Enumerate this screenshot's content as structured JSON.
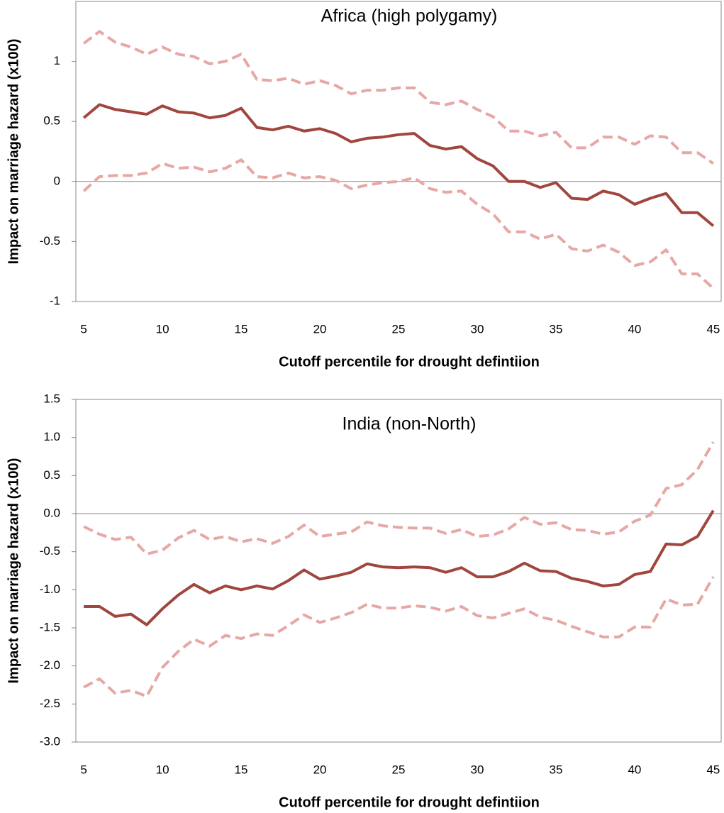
{
  "chart_data": [
    {
      "type": "line",
      "title": "Africa (high polygamy)",
      "x_label": "Cutoff percentile for drought defintiion",
      "y_label": "Impact on marriage hazard (x100)",
      "x": [
        5,
        6,
        7,
        8,
        9,
        10,
        11,
        12,
        13,
        14,
        15,
        16,
        17,
        18,
        19,
        20,
        21,
        22,
        23,
        24,
        25,
        26,
        27,
        28,
        29,
        30,
        31,
        32,
        33,
        34,
        35,
        36,
        37,
        38,
        39,
        40,
        41,
        42,
        43,
        44,
        45
      ],
      "xlim": [
        4.5,
        45.5
      ],
      "xticks": [
        5,
        10,
        15,
        20,
        25,
        30,
        35,
        40,
        45
      ],
      "ylim": [
        -1,
        1.5
      ],
      "yticks": [
        -1,
        -0.5,
        0,
        0.5,
        1
      ],
      "series": [
        {
          "color": "#e6a8a4",
          "dashed": true,
          "values": [
            1.15,
            1.25,
            1.16,
            1.12,
            1.06,
            1.12,
            1.06,
            1.04,
            0.98,
            1.0,
            1.06,
            0.85,
            0.84,
            0.86,
            0.81,
            0.84,
            0.8,
            0.73,
            0.76,
            0.76,
            0.78,
            0.78,
            0.66,
            0.64,
            0.67,
            0.6,
            0.54,
            0.42,
            0.42,
            0.38,
            0.41,
            0.28,
            0.28,
            0.37,
            0.37,
            0.31,
            0.38,
            0.37,
            0.24,
            0.24,
            0.15
          ]
        },
        {
          "color": "#e6a8a4",
          "dashed": true,
          "values": [
            -0.08,
            0.04,
            0.05,
            0.05,
            0.07,
            0.15,
            0.11,
            0.12,
            0.08,
            0.11,
            0.18,
            0.04,
            0.03,
            0.07,
            0.03,
            0.04,
            0.01,
            -0.06,
            -0.03,
            -0.01,
            0.0,
            0.03,
            -0.06,
            -0.09,
            -0.08,
            -0.19,
            -0.27,
            -0.42,
            -0.42,
            -0.48,
            -0.44,
            -0.56,
            -0.58,
            -0.53,
            -0.59,
            -0.7,
            -0.67,
            -0.57,
            -0.77,
            -0.77,
            -0.89
          ]
        },
        {
          "color": "#a0463f",
          "dashed": false,
          "values": [
            0.53,
            0.64,
            0.6,
            0.58,
            0.56,
            0.63,
            0.58,
            0.57,
            0.53,
            0.55,
            0.61,
            0.45,
            0.43,
            0.46,
            0.42,
            0.44,
            0.4,
            0.33,
            0.36,
            0.37,
            0.39,
            0.4,
            0.3,
            0.27,
            0.29,
            0.19,
            0.13,
            0.0,
            0.0,
            -0.05,
            -0.01,
            -0.14,
            -0.15,
            -0.08,
            -0.11,
            -0.19,
            -0.14,
            -0.1,
            -0.26,
            -0.26,
            -0.37
          ]
        }
      ]
    },
    {
      "type": "line",
      "title": "India (non-North)",
      "x_label": "Cutoff percentile for drought defintiion",
      "y_label": "Impact on marriage hazard (x100)",
      "x": [
        5,
        6,
        7,
        8,
        9,
        10,
        11,
        12,
        13,
        14,
        15,
        16,
        17,
        18,
        19,
        20,
        21,
        22,
        23,
        24,
        25,
        26,
        27,
        28,
        29,
        30,
        31,
        32,
        33,
        34,
        35,
        36,
        37,
        38,
        39,
        40,
        41,
        42,
        43,
        44,
        45
      ],
      "xlim": [
        4.5,
        45.5
      ],
      "xticks": [
        5,
        10,
        15,
        20,
        25,
        30,
        35,
        40,
        45
      ],
      "ylim": [
        -3,
        1.5
      ],
      "yticks": [
        {
          "value": -3,
          "label": "-3.0"
        },
        -2.5,
        {
          "value": -2,
          "label": "-2.0"
        },
        -1.5,
        {
          "value": -1,
          "label": "-1.0"
        },
        -0.5,
        {
          "value": 0,
          "label": "0.0"
        },
        0.5,
        {
          "value": 1,
          "label": "1.0"
        },
        1.5
      ],
      "series": [
        {
          "color": "#e6a8a4",
          "dashed": true,
          "values": [
            -0.17,
            -0.27,
            -0.34,
            -0.31,
            -0.53,
            -0.48,
            -0.32,
            -0.22,
            -0.34,
            -0.3,
            -0.37,
            -0.33,
            -0.39,
            -0.3,
            -0.15,
            -0.3,
            -0.27,
            -0.24,
            -0.11,
            -0.16,
            -0.18,
            -0.19,
            -0.19,
            -0.26,
            -0.21,
            -0.3,
            -0.28,
            -0.2,
            -0.05,
            -0.14,
            -0.12,
            -0.21,
            -0.22,
            -0.27,
            -0.24,
            -0.1,
            -0.02,
            0.33,
            0.38,
            0.58,
            0.94
          ]
        },
        {
          "color": "#e6a8a4",
          "dashed": true,
          "values": [
            -2.28,
            -2.17,
            -2.36,
            -2.32,
            -2.4,
            -2.02,
            -1.81,
            -1.65,
            -1.74,
            -1.6,
            -1.64,
            -1.58,
            -1.6,
            -1.47,
            -1.33,
            -1.43,
            -1.37,
            -1.3,
            -1.19,
            -1.24,
            -1.24,
            -1.21,
            -1.23,
            -1.28,
            -1.22,
            -1.34,
            -1.37,
            -1.31,
            -1.25,
            -1.36,
            -1.4,
            -1.48,
            -1.55,
            -1.62,
            -1.62,
            -1.49,
            -1.49,
            -1.12,
            -1.2,
            -1.19,
            -0.83
          ]
        },
        {
          "color": "#a0463f",
          "dashed": false,
          "values": [
            -1.22,
            -1.22,
            -1.35,
            -1.32,
            -1.46,
            -1.25,
            -1.07,
            -0.93,
            -1.04,
            -0.95,
            -1.0,
            -0.95,
            -0.99,
            -0.88,
            -0.74,
            -0.86,
            -0.82,
            -0.77,
            -0.66,
            -0.7,
            -0.71,
            -0.7,
            -0.71,
            -0.77,
            -0.71,
            -0.83,
            -0.83,
            -0.76,
            -0.65,
            -0.75,
            -0.76,
            -0.85,
            -0.89,
            -0.95,
            -0.93,
            -0.8,
            -0.76,
            -0.4,
            -0.41,
            -0.3,
            0.04
          ]
        }
      ]
    }
  ]
}
